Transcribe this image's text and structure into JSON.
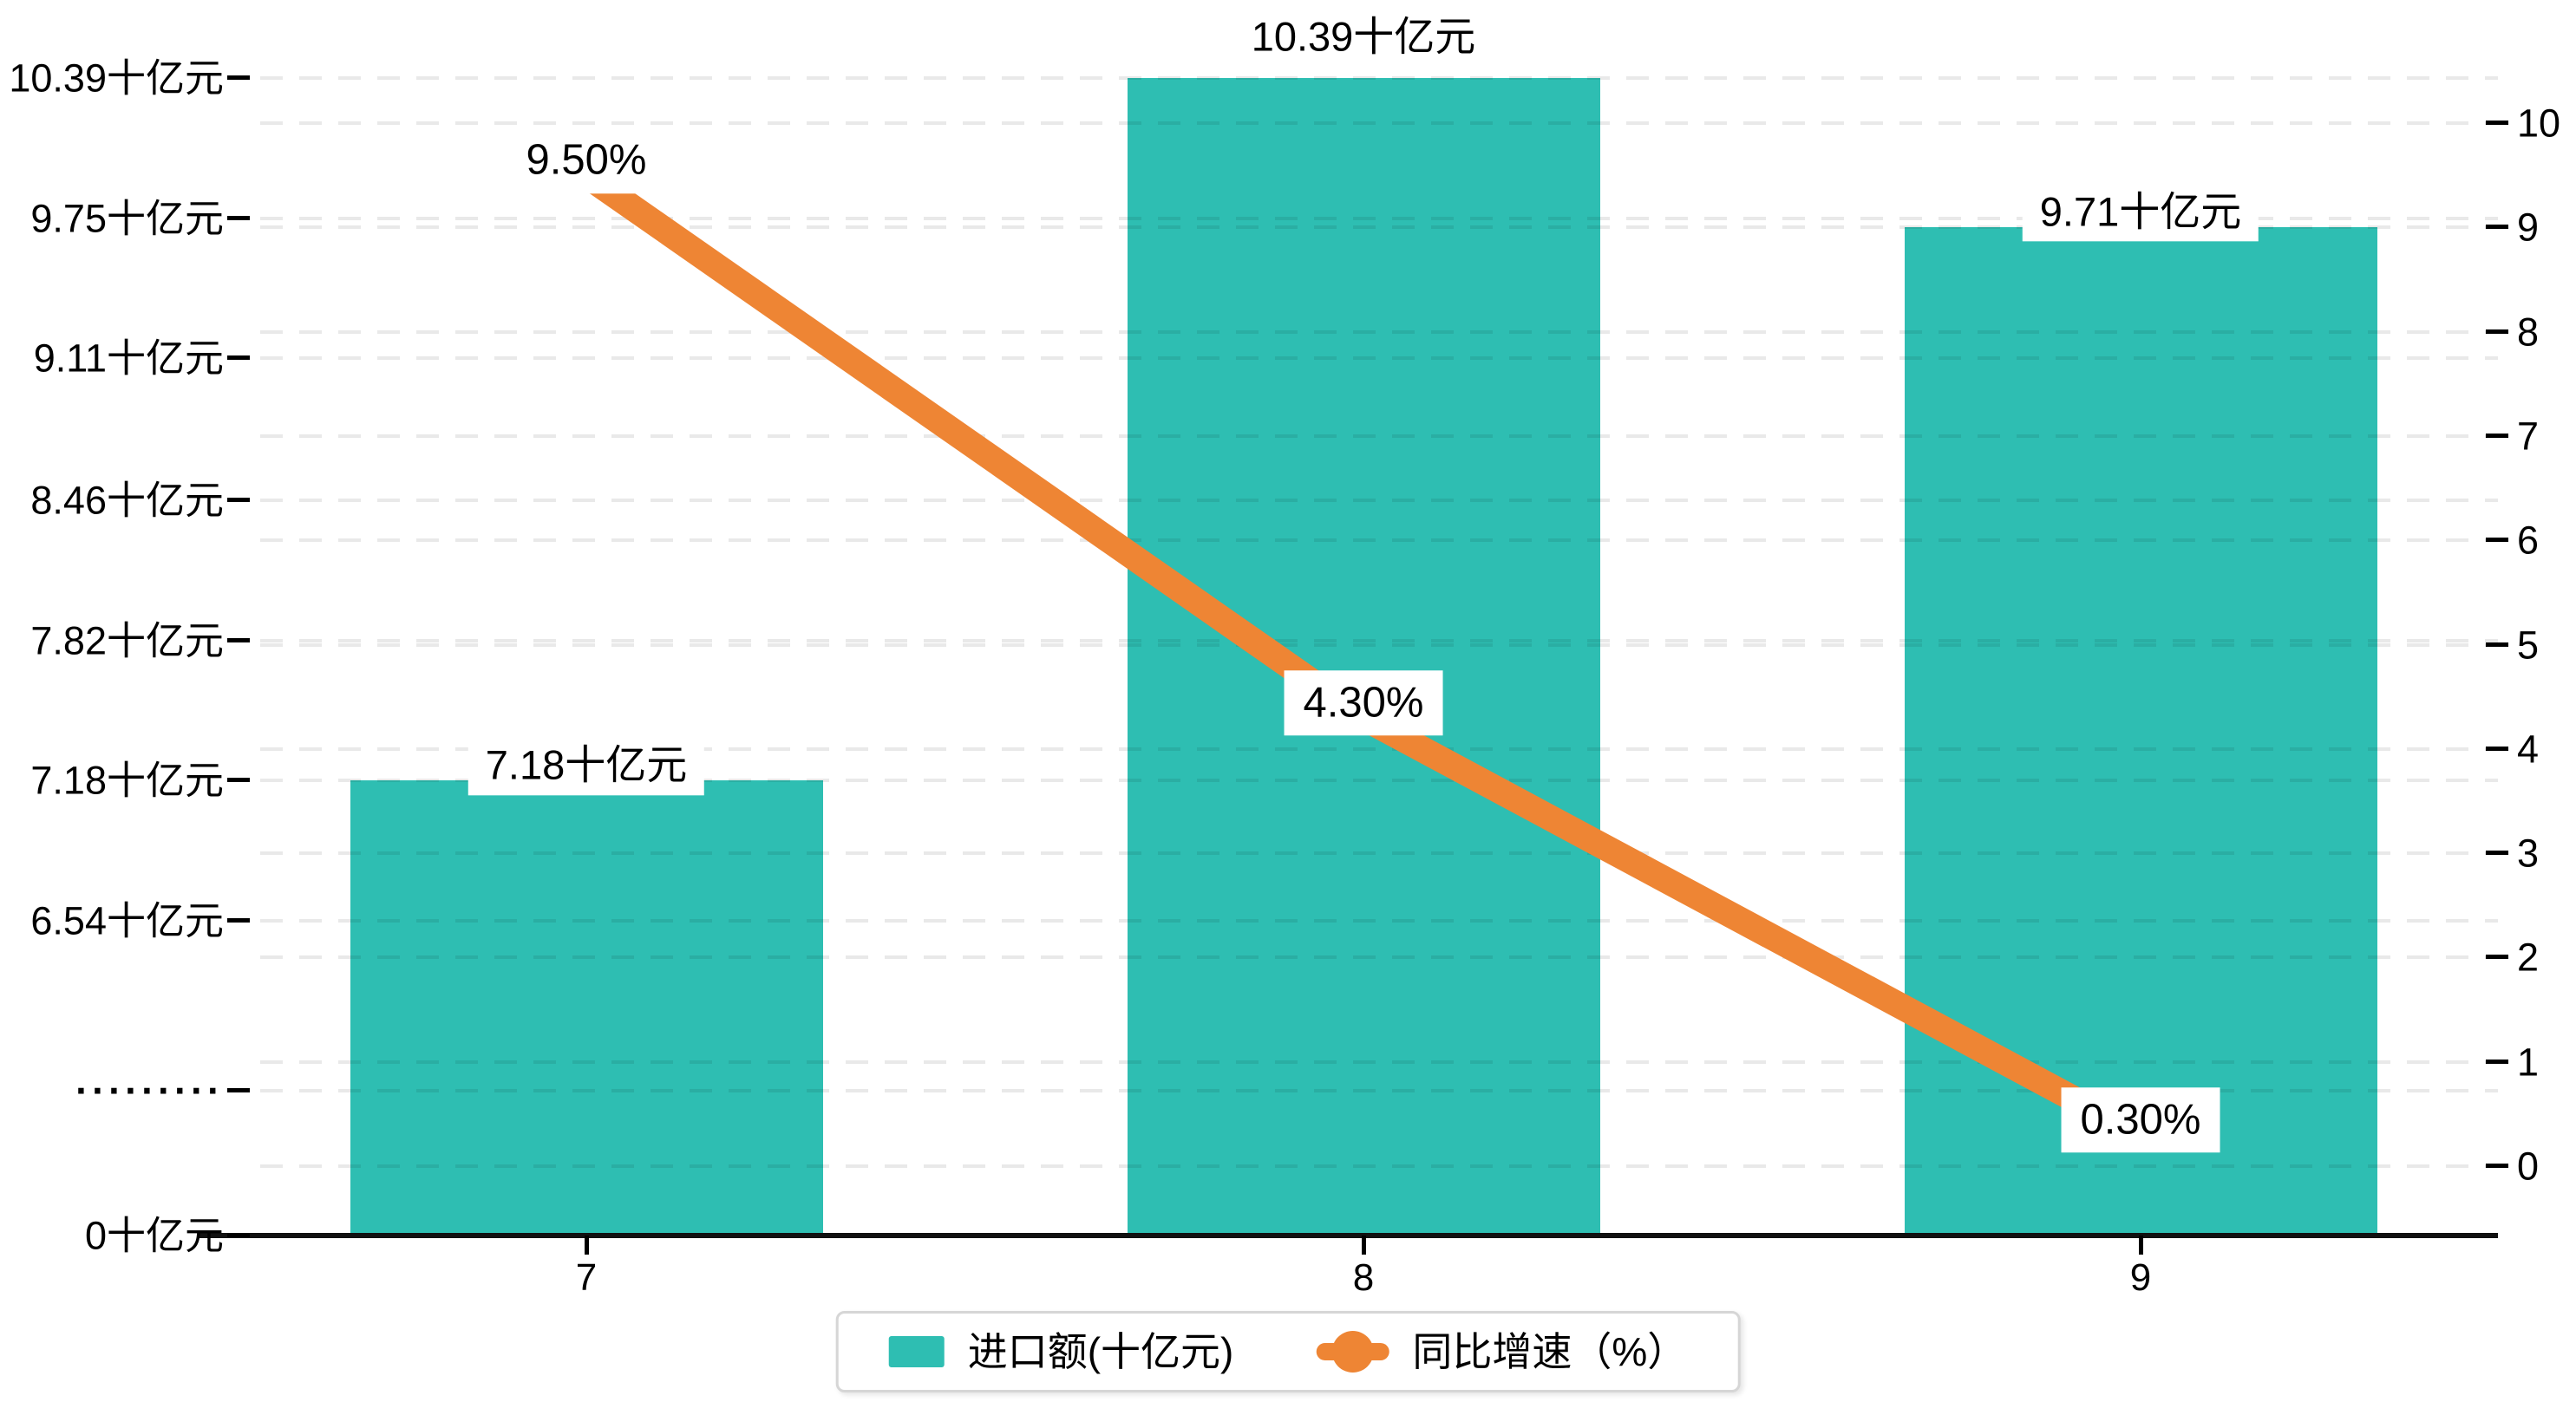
{
  "chart_data": {
    "type": "combo",
    "categories": [
      "7",
      "8",
      "9"
    ],
    "series": [
      {
        "name": "进口额(十亿元)",
        "type": "bar",
        "axis": "left",
        "unit": "十亿元",
        "values": [
          7.18,
          10.39,
          9.71
        ],
        "labels": [
          "7.18十亿元",
          "10.39十亿元",
          "9.71十亿元"
        ]
      },
      {
        "name": "同比增速（%）",
        "type": "line",
        "axis": "right",
        "unit": "%",
        "values": [
          9.5,
          4.3,
          0.3
        ],
        "labels": [
          "9.50%",
          "4.30%",
          "0.30%"
        ]
      }
    ],
    "left_axis": {
      "ticks": [
        "10.39十亿元",
        "9.75十亿元",
        "9.11十亿元",
        "8.46十亿元",
        "7.82十亿元",
        "7.18十亿元",
        "6.54十亿元"
      ],
      "tick_values": [
        10.39,
        9.75,
        9.11,
        8.46,
        7.82,
        7.18,
        6.54
      ],
      "break_label": "·········",
      "zero_label": "0十亿元",
      "min": 6.54,
      "max": 10.39,
      "axis_break": true
    },
    "right_axis": {
      "ticks": [
        "10",
        "9",
        "8",
        "7",
        "6",
        "5",
        "4",
        "3",
        "2",
        "1",
        "0"
      ],
      "min": 0,
      "max": 10
    },
    "x_axis": {
      "labels": [
        "7",
        "8",
        "9"
      ]
    },
    "legend": [
      {
        "label": "进口额(十亿元)"
      },
      {
        "label": "同比增速（%）"
      }
    ],
    "grid": "dashed",
    "legend_position": "bottom-center"
  },
  "colors": {
    "bar": "#2EBEB2",
    "line": "#EE8534",
    "axis": "#111111",
    "label_bg": "#FFFFFF",
    "legend_border": "#D6D6D6"
  }
}
